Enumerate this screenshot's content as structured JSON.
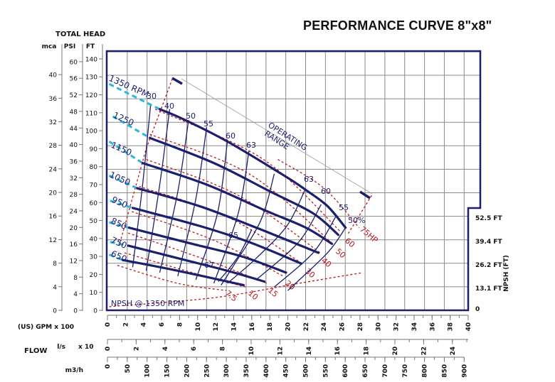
{
  "title": "PERFORMANCE CURVE 8\"x8\"",
  "chart_data": {
    "type": "line",
    "grid": true,
    "xlim": [
      0,
      40
    ],
    "ylim": [
      0,
      140
    ],
    "y_title": "TOTAL HEAD",
    "y_axes": [
      {
        "label": "mca",
        "ticks": [
          0,
          4,
          8,
          12,
          16,
          20,
          24,
          28,
          32,
          36,
          40
        ]
      },
      {
        "label": "PSI",
        "ticks": [
          0,
          4,
          8,
          12,
          16,
          20,
          24,
          28,
          32,
          36,
          40,
          44,
          48,
          52,
          56,
          60
        ]
      },
      {
        "label": "FT",
        "ticks": [
          0,
          10,
          20,
          30,
          40,
          50,
          60,
          70,
          80,
          90,
          100,
          110,
          120,
          130,
          140
        ]
      }
    ],
    "x_title": "FLOW",
    "x_axes": [
      {
        "label": "(US) GPM x 100",
        "ticks": [
          0,
          2,
          4,
          6,
          8,
          10,
          12,
          14,
          16,
          18,
          20,
          22,
          24,
          26,
          28,
          30,
          32,
          34,
          36,
          38,
          40
        ]
      },
      {
        "label": "l/s",
        "multiplier": "x 10",
        "ticks": [
          0,
          2,
          4,
          6,
          8,
          10,
          12,
          14,
          16,
          18,
          20,
          22,
          24
        ]
      },
      {
        "label": "m3/h",
        "ticks": [
          0,
          50,
          100,
          150,
          200,
          250,
          300,
          350,
          400,
          450,
          500,
          550,
          600,
          650,
          700,
          750,
          800,
          850,
          900
        ]
      }
    ],
    "npsh_axis": {
      "label": "NPSH  (FT)",
      "ticks": [
        "0",
        "13.1 FT",
        "26.2 FT",
        "39.4 FT",
        "52.5 FT"
      ]
    },
    "series": [
      {
        "name": "1350 RPM",
        "dashed": [
          [
            0.2,
            126
          ],
          [
            5.8,
            112
          ]
        ],
        "points": [
          [
            5.8,
            112
          ],
          [
            8.6,
            106
          ],
          [
            13.3,
            94
          ],
          [
            19.6,
            75
          ],
          [
            22.0,
            67
          ],
          [
            24.4,
            58
          ],
          [
            26.4,
            46
          ]
        ]
      },
      {
        "name": "1250",
        "dashed": [
          [
            0.6,
            108
          ],
          [
            4.7,
            96
          ]
        ],
        "points": [
          [
            4.7,
            96
          ],
          [
            11.8,
            82
          ],
          [
            18.1,
            66
          ],
          [
            22.8,
            54
          ],
          [
            25.6,
            42
          ]
        ]
      },
      {
        "name": "1150",
        "dashed": [
          [
            0.2,
            94
          ],
          [
            3.9,
            82
          ]
        ],
        "points": [
          [
            3.9,
            82
          ],
          [
            11.0,
            70
          ],
          [
            17.3,
            56
          ],
          [
            22.0,
            46
          ],
          [
            24.9,
            37
          ]
        ]
      },
      {
        "name": "1050",
        "dashed": [
          [
            0.2,
            75
          ],
          [
            3.3,
            68
          ]
        ],
        "points": [
          [
            3.3,
            68
          ],
          [
            10.2,
            58
          ],
          [
            16.5,
            46
          ],
          [
            23.4,
            32
          ]
        ]
      },
      {
        "name": "950",
        "dashed": [
          [
            0.3,
            61
          ],
          [
            2.8,
            57
          ]
        ],
        "points": [
          [
            2.8,
            57
          ],
          [
            10.2,
            47
          ],
          [
            15.7,
            38
          ],
          [
            21.5,
            26
          ]
        ]
      },
      {
        "name": "850",
        "dashed": [
          [
            0.2,
            49
          ],
          [
            2.4,
            46
          ]
        ],
        "points": [
          [
            2.4,
            46
          ],
          [
            9.4,
            37
          ],
          [
            14.9,
            30
          ],
          [
            19.8,
            21
          ]
        ]
      },
      {
        "name": "750",
        "dashed": [
          [
            0.3,
            38
          ],
          [
            2.3,
            36
          ]
        ],
        "points": [
          [
            2.3,
            36
          ],
          [
            8.6,
            28
          ],
          [
            13.3,
            22
          ],
          [
            17.4,
            16
          ]
        ]
      },
      {
        "name": "650",
        "dashed": [
          [
            0.2,
            31
          ],
          [
            1.7,
            28
          ]
        ],
        "points": [
          [
            1.7,
            28
          ],
          [
            7.8,
            22
          ],
          [
            15.1,
            14
          ]
        ]
      }
    ],
    "efficiency_curves": [
      {
        "label": "30",
        "points": [
          [
            4.8,
            115
          ],
          [
            3.9,
            70
          ],
          [
            2.8,
            24
          ]
        ]
      },
      {
        "label": "40",
        "points": [
          [
            6.9,
            112
          ],
          [
            5.8,
            70
          ],
          [
            4.3,
            22
          ]
        ]
      },
      {
        "label": "50",
        "points": [
          [
            9.0,
            106
          ],
          [
            7.8,
            66
          ],
          [
            5.8,
            21
          ]
        ]
      },
      {
        "label": "55",
        "points": [
          [
            11.0,
            102
          ],
          [
            9.8,
            62
          ],
          [
            7.8,
            19
          ]
        ]
      },
      {
        "label": "60",
        "points": [
          [
            13.3,
            94
          ],
          [
            12.2,
            54
          ],
          [
            9.8,
            17
          ]
        ]
      },
      {
        "label": "63",
        "points": [
          [
            15.7,
            89
          ],
          [
            14.5,
            54
          ],
          [
            11.8,
            15
          ]
        ]
      },
      {
        "label": "65",
        "points": [
          [
            18.5,
            76
          ],
          [
            17.0,
            50
          ],
          [
            14.0,
            25
          ],
          [
            12.6,
            14
          ]
        ]
      },
      {
        "label": "67",
        "points": [
          [
            16.0,
            45
          ],
          [
            14.5,
            30
          ],
          [
            12.3,
            16
          ]
        ]
      },
      {
        "label": "63",
        "points": [
          [
            21.9,
            67
          ],
          [
            19.9,
            47
          ],
          [
            16.5,
            29
          ],
          [
            13.3,
            15
          ]
        ]
      },
      {
        "label": "60",
        "points": [
          [
            23.7,
            59
          ],
          [
            21.2,
            38
          ],
          [
            16.5,
            17
          ]
        ]
      },
      {
        "label": "55",
        "points": [
          [
            25.3,
            52
          ],
          [
            22.8,
            32
          ],
          [
            18.5,
            13
          ]
        ]
      },
      {
        "label": "50%",
        "points": [
          [
            26.4,
            46
          ],
          [
            24.4,
            32
          ],
          [
            20.0,
            11
          ]
        ]
      }
    ],
    "power_curves": [
      {
        "label": "7.5",
        "points": [
          [
            1.1,
            25
          ],
          [
            7.8,
            15
          ],
          [
            13.2,
            11
          ]
        ]
      },
      {
        "label": "10",
        "points": [
          [
            1.9,
            32
          ],
          [
            9.4,
            21
          ],
          [
            15.3,
            13
          ]
        ]
      },
      {
        "label": "15",
        "points": [
          [
            2.3,
            43
          ],
          [
            11.0,
            28
          ],
          [
            17.7,
            15
          ]
        ]
      },
      {
        "label": "20",
        "points": [
          [
            2.7,
            55
          ],
          [
            11.8,
            39
          ],
          [
            19.5,
            19
          ]
        ]
      },
      {
        "label": "30",
        "points": [
          [
            3.5,
            69
          ],
          [
            13.3,
            52
          ],
          [
            21.6,
            26
          ]
        ]
      },
      {
        "label": "40",
        "points": [
          [
            4.3,
            84
          ],
          [
            14.5,
            64
          ],
          [
            23.6,
            32
          ]
        ]
      },
      {
        "label": "50",
        "points": [
          [
            4.7,
            98
          ],
          [
            15.7,
            76
          ],
          [
            24.8,
            38
          ]
        ]
      },
      {
        "label": "60",
        "points": [
          [
            5.3,
            112
          ],
          [
            17.3,
            84
          ],
          [
            25.8,
            44
          ]
        ]
      },
      {
        "label": "75HP",
        "points": [
          [
            18.9,
            84
          ],
          [
            24.0,
            68
          ],
          [
            27.9,
            46
          ]
        ]
      }
    ],
    "operating_range": {
      "label_line1": "OPERATING",
      "label_line2": "RANGE",
      "guide": [
        [
          8.2,
          129
        ],
        [
          29.3,
          65
        ]
      ],
      "left_boundary": [
        [
          7.2,
          129
        ],
        [
          4.3,
          90
        ],
        [
          1.3,
          36
        ]
      ],
      "right_boundary": [
        [
          29.3,
          64
        ],
        [
          26.6,
          42
        ]
      ]
    },
    "npsh_curve": {
      "label": "NPSH @ 1350 RPM",
      "points": [
        [
          0.2,
          2
        ],
        [
          11.8,
          7
        ],
        [
          21.2,
          15
        ],
        [
          28.3,
          21
        ]
      ]
    },
    "colors": {
      "head": "#1b1f6e",
      "rpm_dash": "#2bb5dd",
      "power": "#c0151b",
      "grid": "#888888",
      "frame": "#1b1f6e"
    }
  }
}
